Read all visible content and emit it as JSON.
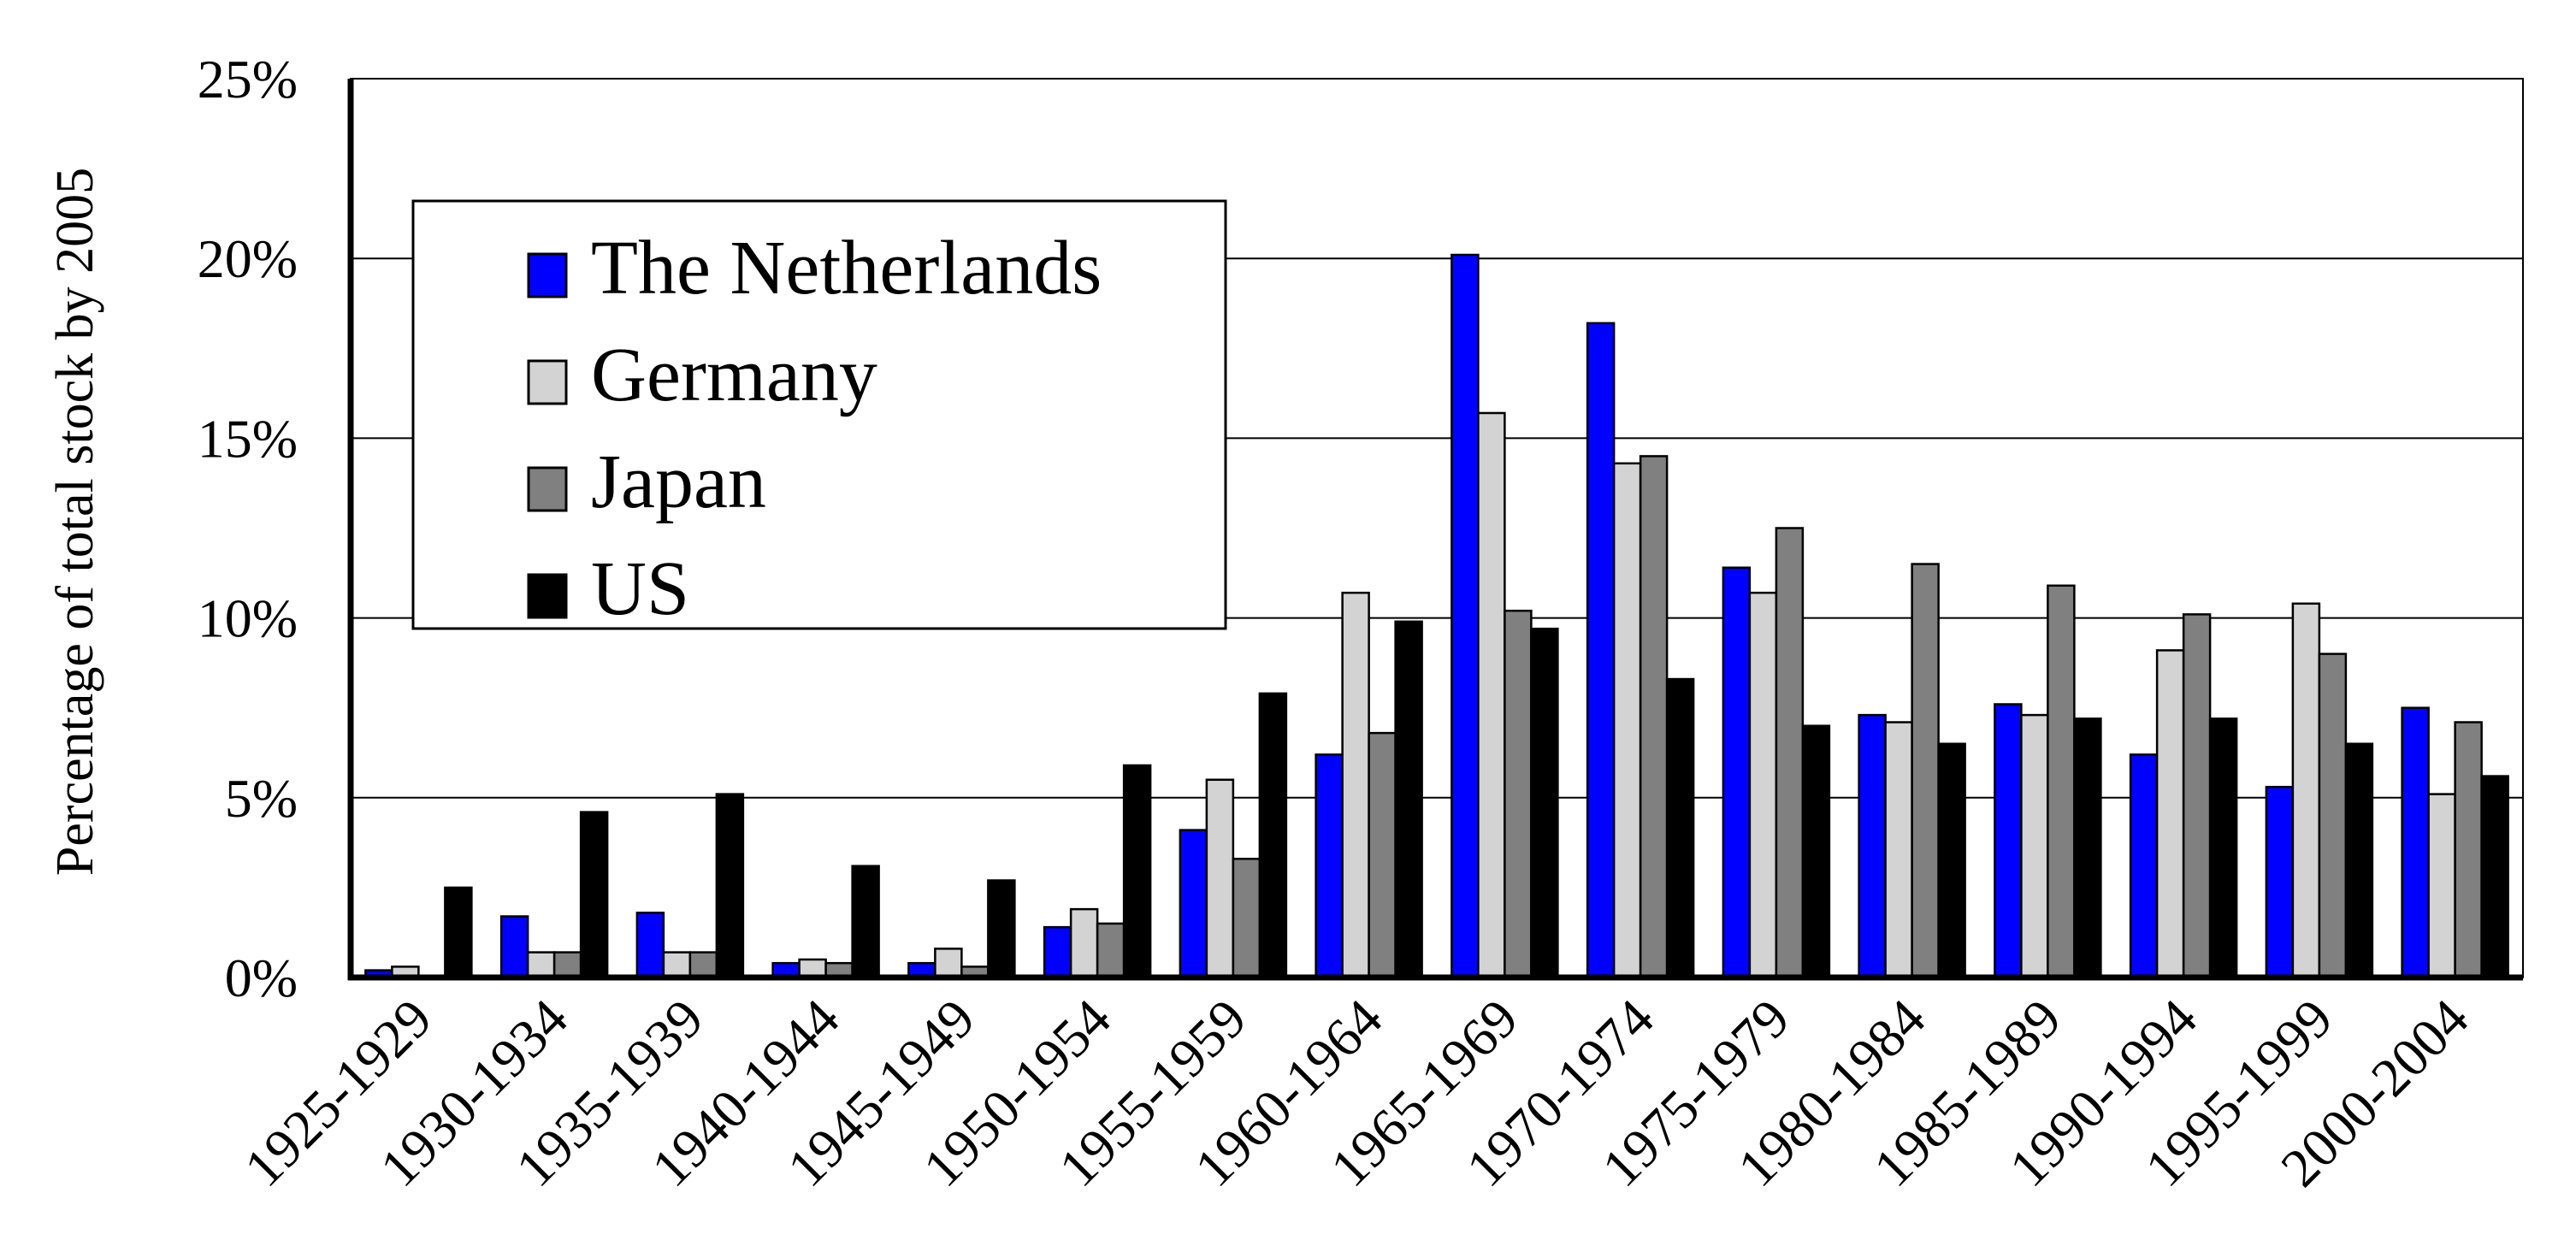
{
  "chart_data": {
    "type": "bar",
    "title": "",
    "xlabel": "",
    "ylabel": "Percentage of total stock by 2005",
    "ylim": [
      0,
      25
    ],
    "y_ticks": [
      "0%",
      "5%",
      "10%",
      "15%",
      "20%",
      "25%"
    ],
    "y_tick_values": [
      0,
      5,
      10,
      15,
      20,
      25
    ],
    "grid": "horizontal",
    "legend_position": "top-left",
    "categories": [
      "1925-1929",
      "1930-1934",
      "1935-1939",
      "1940-1944",
      "1945-1949",
      "1950-1954",
      "1955-1959",
      "1960-1964",
      "1965-1969",
      "1970-1974",
      "1975-1979",
      "1980-1984",
      "1985-1989",
      "1990-1994",
      "1995-1999",
      "2000-2004"
    ],
    "series": [
      {
        "name": "The Netherlands",
        "color": "#0000ff",
        "values": [
          0.2,
          1.7,
          1.8,
          0.4,
          0.4,
          1.4,
          4.1,
          6.2,
          20.1,
          18.2,
          11.4,
          7.3,
          7.6,
          6.2,
          5.3,
          7.5
        ]
      },
      {
        "name": "Germany",
        "color": "#d3d3d3",
        "values": [
          0.3,
          0.7,
          0.7,
          0.5,
          0.8,
          1.9,
          5.5,
          10.7,
          15.7,
          14.3,
          10.7,
          7.1,
          7.3,
          9.1,
          10.4,
          5.1
        ]
      },
      {
        "name": "Japan",
        "color": "#808080",
        "values": [
          0.0,
          0.7,
          0.7,
          0.4,
          0.3,
          1.5,
          3.3,
          6.8,
          10.2,
          14.5,
          12.5,
          11.5,
          10.9,
          10.1,
          9.0,
          7.1
        ]
      },
      {
        "name": "US",
        "color": "#000000",
        "values": [
          2.5,
          4.6,
          5.1,
          3.1,
          2.7,
          5.9,
          7.9,
          9.9,
          9.7,
          8.3,
          7.0,
          6.5,
          7.2,
          7.2,
          6.5,
          5.6
        ]
      }
    ]
  }
}
